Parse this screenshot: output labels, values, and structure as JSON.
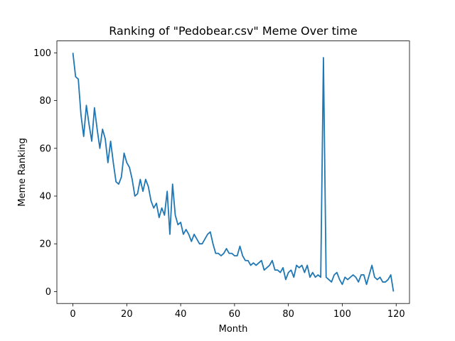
{
  "chart_data": {
    "type": "line",
    "title": "Ranking of \"Pedobear.csv\" Meme Over time",
    "xlabel": "Month",
    "ylabel": "Meme Ranking",
    "xlim": [
      -5.95,
      124.95
    ],
    "ylim": [
      -5,
      105
    ],
    "xticks": [
      0,
      20,
      40,
      60,
      80,
      100,
      120
    ],
    "yticks": [
      0,
      20,
      40,
      60,
      80,
      100
    ],
    "grid": false,
    "legend": "none",
    "series": [
      {
        "color": "#1f77b4",
        "x": [
          0,
          1,
          2,
          3,
          4,
          5,
          6,
          7,
          8,
          9,
          10,
          11,
          12,
          13,
          14,
          15,
          16,
          17,
          18,
          19,
          20,
          21,
          22,
          23,
          24,
          25,
          26,
          27,
          28,
          29,
          30,
          31,
          32,
          33,
          34,
          35,
          36,
          37,
          38,
          39,
          40,
          41,
          42,
          43,
          44,
          45,
          46,
          47,
          48,
          49,
          50,
          51,
          52,
          53,
          54,
          55,
          56,
          57,
          58,
          59,
          60,
          61,
          62,
          63,
          64,
          65,
          66,
          67,
          68,
          69,
          70,
          71,
          72,
          73,
          74,
          75,
          76,
          77,
          78,
          79,
          80,
          81,
          82,
          83,
          84,
          85,
          86,
          87,
          88,
          89,
          90,
          91,
          92,
          93,
          94,
          95,
          96,
          97,
          98,
          99,
          100,
          101,
          102,
          103,
          104,
          105,
          106,
          107,
          108,
          109,
          110,
          111,
          112,
          113,
          114,
          115,
          116,
          117,
          118,
          119
        ],
        "values": [
          100,
          90,
          89,
          74,
          65,
          78,
          70,
          63,
          77,
          68,
          60,
          68,
          64,
          54,
          63,
          54,
          46,
          45,
          48,
          58,
          54,
          52,
          47,
          40,
          41,
          47,
          42,
          47,
          44,
          38,
          35,
          37,
          31,
          35,
          32,
          42,
          24,
          45,
          32,
          28,
          29,
          24,
          26,
          24,
          21,
          24,
          22,
          20,
          20,
          22,
          24,
          25,
          20,
          16,
          16,
          15,
          16,
          18,
          16,
          16,
          15,
          15,
          19,
          15,
          13,
          13,
          11,
          12,
          11,
          12,
          13,
          9,
          10,
          11,
          13,
          9,
          9,
          8,
          10,
          5,
          8,
          9,
          6,
          11,
          10,
          11,
          8,
          11,
          6,
          8,
          6,
          7,
          6,
          98,
          6,
          5,
          4,
          7,
          8,
          5,
          3,
          6,
          5,
          6,
          7,
          6,
          4,
          7,
          7,
          3,
          7,
          11,
          6,
          5,
          6,
          4,
          4,
          5,
          7,
          0
        ]
      }
    ]
  }
}
